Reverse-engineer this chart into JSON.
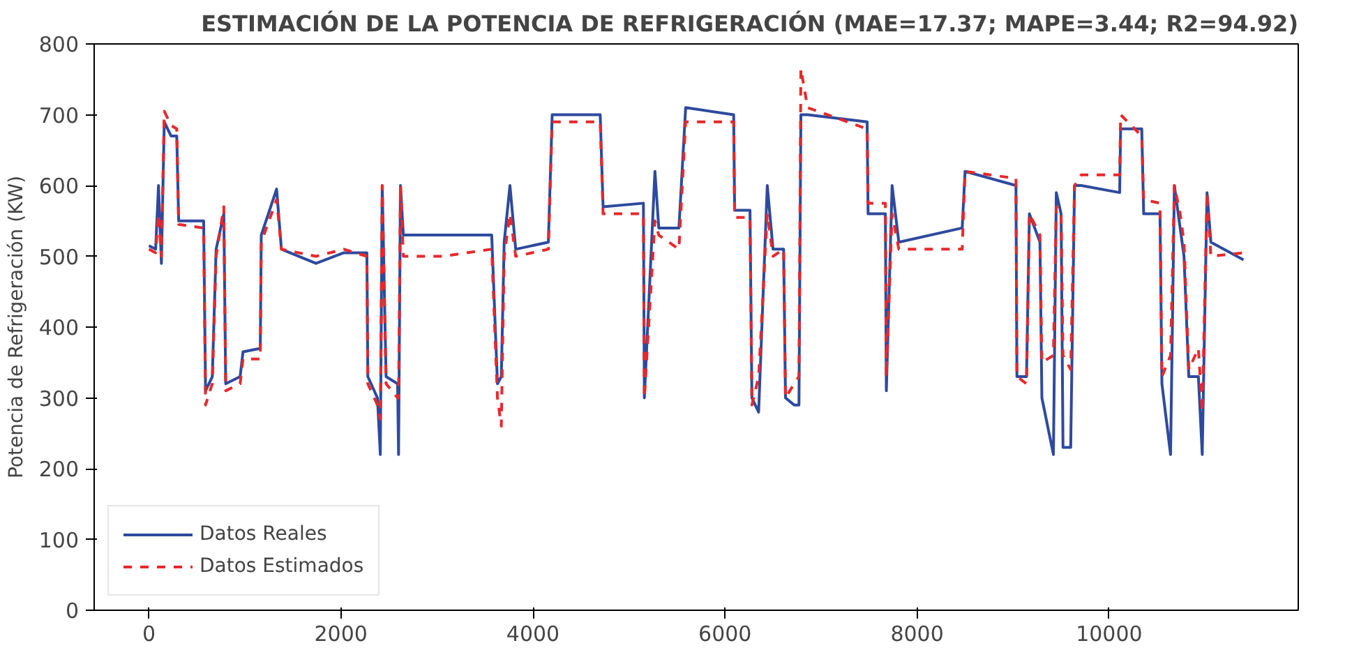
{
  "chart_data": {
    "type": "line",
    "title": "ESTIMACIÓN DE LA POTENCIA DE REFRIGERACIÓN (MAE=17.37; MAPE=3.44; R2=94.92)",
    "ylabel": "Potencia de Refrigeración (KW)",
    "x": [
      0,
      70,
      100,
      130,
      160,
      230,
      290,
      310,
      570,
      590,
      660,
      700,
      780,
      800,
      950,
      980,
      1160,
      1170,
      1330,
      1380,
      1740,
      2030,
      2270,
      2280,
      2380,
      2410,
      2430,
      2470,
      2590,
      2600,
      2620,
      2650,
      3060,
      3570,
      3630,
      3670,
      3700,
      3760,
      3820,
      4160,
      4200,
      4700,
      4730,
      5150,
      5160,
      5270,
      5310,
      5520,
      5590,
      6090,
      6100,
      6260,
      6280,
      6350,
      6440,
      6500,
      6610,
      6630,
      6720,
      6770,
      6790,
      6860,
      7480,
      7490,
      7670,
      7680,
      7740,
      7810,
      8470,
      8500,
      9030,
      9040,
      9140,
      9170,
      9280,
      9300,
      9420,
      9450,
      9500,
      9520,
      9600,
      9640,
      9710,
      10110,
      10120,
      10340,
      10360,
      10530,
      10550,
      10640,
      10680,
      10740,
      10780,
      10830,
      10930,
      10970,
      11020,
      11060,
      11400
    ],
    "series": [
      {
        "name": "Datos Reales",
        "color": "#2e4a9e",
        "line_style": "solid",
        "values": [
          515,
          510,
          600,
          490,
          690,
          670,
          670,
          550,
          550,
          310,
          330,
          510,
          560,
          320,
          330,
          365,
          370,
          530,
          595,
          510,
          490,
          505,
          505,
          330,
          300,
          220,
          600,
          330,
          320,
          220,
          600,
          530,
          530,
          530,
          320,
          330,
          520,
          600,
          510,
          520,
          700,
          700,
          570,
          575,
          300,
          620,
          540,
          540,
          710,
          700,
          565,
          565,
          300,
          280,
          600,
          510,
          510,
          300,
          290,
          290,
          700,
          700,
          690,
          560,
          560,
          310,
          600,
          520,
          540,
          620,
          600,
          330,
          330,
          560,
          520,
          300,
          220,
          590,
          560,
          230,
          230,
          600,
          600,
          590,
          680,
          680,
          560,
          560,
          320,
          220,
          600,
          540,
          500,
          330,
          330,
          220,
          590,
          520,
          495
        ]
      },
      {
        "name": "Datos Estimados",
        "color": "#e8282b",
        "line_style": "dashed",
        "values": [
          510,
          505,
          560,
          500,
          705,
          685,
          680,
          545,
          540,
          290,
          320,
          500,
          570,
          310,
          320,
          355,
          355,
          520,
          580,
          510,
          500,
          510,
          500,
          320,
          290,
          270,
          600,
          320,
          300,
          300,
          600,
          500,
          500,
          510,
          300,
          260,
          500,
          560,
          500,
          510,
          690,
          690,
          560,
          560,
          300,
          550,
          530,
          510,
          690,
          690,
          555,
          555,
          290,
          330,
          560,
          500,
          510,
          300,
          320,
          330,
          765,
          710,
          680,
          575,
          575,
          330,
          560,
          510,
          510,
          620,
          610,
          330,
          320,
          560,
          530,
          350,
          360,
          570,
          560,
          360,
          340,
          600,
          615,
          615,
          700,
          670,
          580,
          575,
          330,
          360,
          600,
          560,
          520,
          340,
          370,
          280,
          590,
          500,
          505
        ]
      }
    ],
    "xlim": [
      -570,
      11970
    ],
    "ylim": [
      0,
      800
    ],
    "xticks": [
      0,
      2000,
      4000,
      6000,
      8000,
      10000
    ],
    "yticks": [
      0,
      100,
      200,
      300,
      400,
      500,
      600,
      700,
      800
    ],
    "grid": false,
    "legend": "bottom left",
    "marker": "none"
  }
}
